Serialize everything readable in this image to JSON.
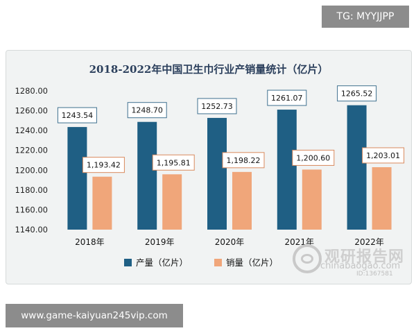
{
  "header": {
    "badge_text": "TG: MYYJJPP"
  },
  "footer": {
    "badge_text": "www.game-kaiyuan245vip.com"
  },
  "watermark": {
    "brand_cn": "观研报告网",
    "brand_en": "chinabaogao.com",
    "account_id": "ID:1367581"
  },
  "colors": {
    "production": "#1f5f84",
    "sales": "#f0a67a",
    "background": "#f1f3f3"
  },
  "chart_data": {
    "type": "bar",
    "title": "2018-2022年中国卫生巾行业产销量统计（亿片）",
    "categories": [
      "2018年",
      "2019年",
      "2020年",
      "2021年",
      "2022年"
    ],
    "series": [
      {
        "name": "产量（亿片）",
        "values": [
          1243.54,
          1248.7,
          1252.73,
          1261.07,
          1265.52
        ],
        "labels": [
          "1243.54",
          "1248.70",
          "1252.73",
          "1261.07",
          "1265.52"
        ]
      },
      {
        "name": "销量（亿片）",
        "values": [
          1193.42,
          1195.81,
          1198.22,
          1200.6,
          1203.01
        ],
        "labels": [
          "1,193.42",
          "1,195.81",
          "1,198.22",
          "1,200.60",
          "1,203.01"
        ]
      }
    ],
    "yticks": [
      "1140.00",
      "1160.00",
      "1180.00",
      "1200.00",
      "1220.00",
      "1240.00",
      "1260.00",
      "1280.00"
    ],
    "ylim": [
      1140,
      1280
    ],
    "grid": false,
    "legend_position": "bottom"
  }
}
